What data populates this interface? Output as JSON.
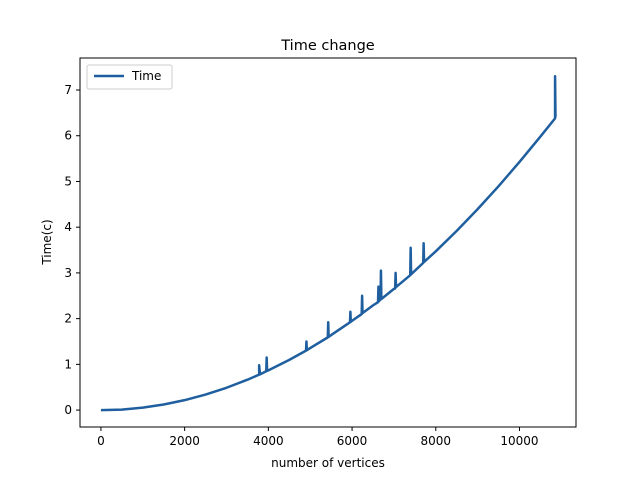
{
  "chart_data": {
    "type": "line",
    "title": "Time change",
    "xlabel": "number of vertices",
    "ylabel": "Time(c)",
    "xlim": [
      -500,
      11350
    ],
    "ylim": [
      -0.37,
      7.7
    ],
    "xticks": [
      0,
      2000,
      4000,
      6000,
      8000,
      10000
    ],
    "yticks": [
      0,
      1,
      2,
      3,
      4,
      5,
      6,
      7
    ],
    "grid": false,
    "legend_position": "top-left",
    "series": [
      {
        "name": "Time",
        "color": "#1f5f9f",
        "x": [
          0,
          500,
          1000,
          1500,
          2000,
          2500,
          3000,
          3500,
          3780,
          3780,
          3800,
          3950,
          3960,
          3970,
          4000,
          4500,
          4900,
          4910,
          4920,
          5000,
          5420,
          5430,
          5440,
          5500,
          5950,
          5960,
          5970,
          6000,
          6230,
          6240,
          6250,
          6500,
          6620,
          6630,
          6640,
          6680,
          6690,
          6700,
          7000,
          7030,
          7040,
          7050,
          7390,
          7400,
          7410,
          7700,
          7710,
          7720,
          8000,
          8500,
          9000,
          9500,
          10000,
          10500,
          10850,
          10850,
          10860,
          10870
        ],
        "y": [
          0,
          0.011,
          0.054,
          0.122,
          0.217,
          0.339,
          0.488,
          0.664,
          0.775,
          0.98,
          0.78,
          0.85,
          1.15,
          0.86,
          0.868,
          1.098,
          1.3,
          1.5,
          1.31,
          1.356,
          1.59,
          1.92,
          1.6,
          1.64,
          1.92,
          2.15,
          1.93,
          1.953,
          2.1,
          2.5,
          2.12,
          2.29,
          2.36,
          2.7,
          2.38,
          2.42,
          3.05,
          2.43,
          2.65,
          2.66,
          3.0,
          2.69,
          2.95,
          3.55,
          2.97,
          3.22,
          3.65,
          3.24,
          3.472,
          3.92,
          4.395,
          4.897,
          5.426,
          5.982,
          6.38,
          7.3,
          6.42,
          6.43
        ]
      }
    ]
  }
}
